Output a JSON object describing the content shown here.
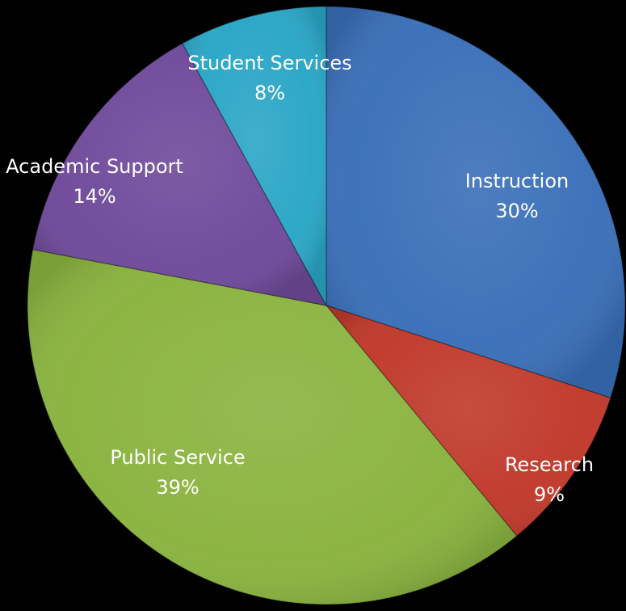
{
  "chart_data": {
    "type": "pie",
    "title": "",
    "categories": [
      "Instruction",
      "Research",
      "Public Service",
      "Academic Support",
      "Student Services"
    ],
    "values": [
      30,
      9,
      39,
      14,
      8
    ],
    "labels": [
      "30%",
      "9%",
      "39%",
      "14%",
      "8%"
    ],
    "colors": [
      "#3a6fb8",
      "#c0392b",
      "#8ab33f",
      "#6f4a9a",
      "#2aa6c6"
    ],
    "start_angle_deg": 0,
    "direction": "clockwise",
    "legend": "none"
  }
}
